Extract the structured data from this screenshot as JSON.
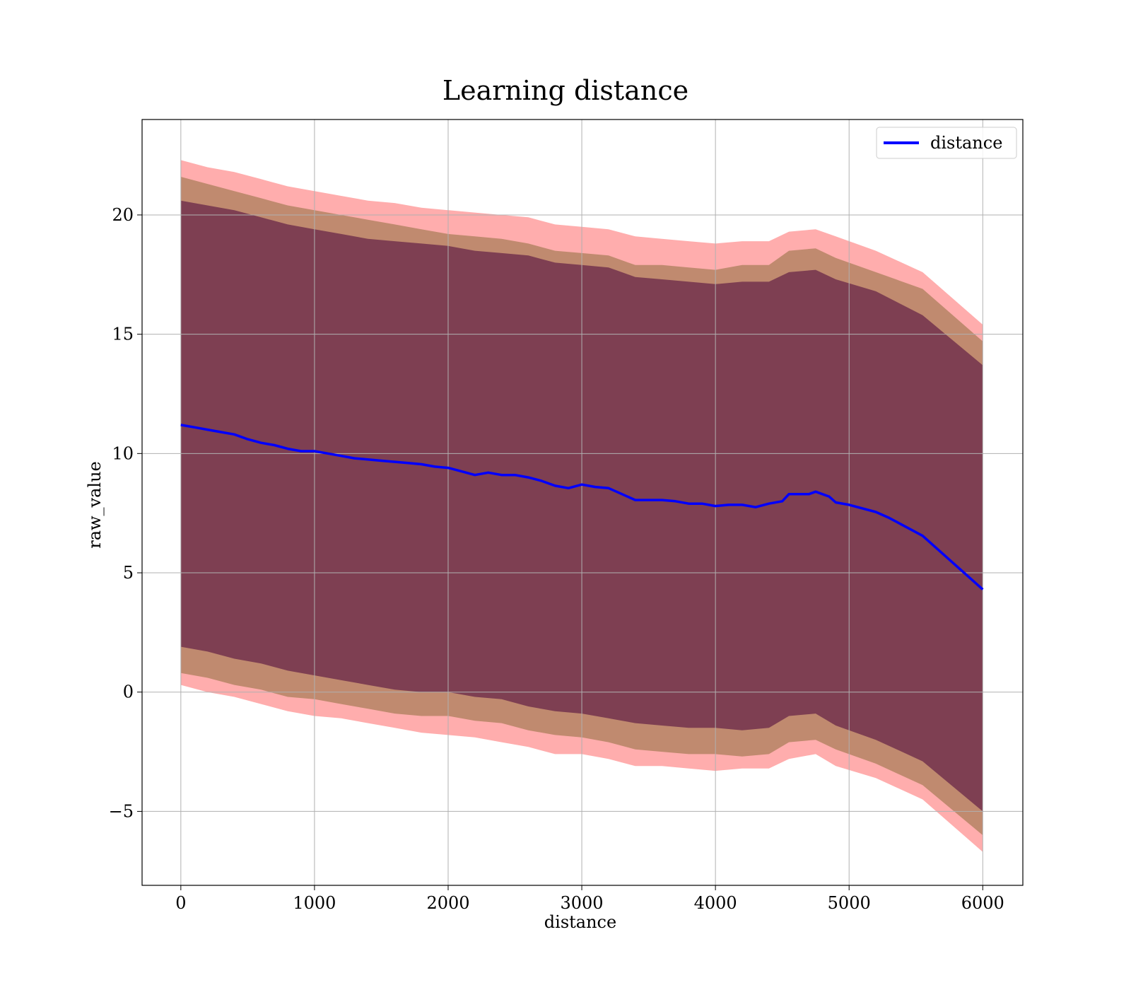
{
  "chart_data": {
    "type": "line",
    "title": "Learning distance",
    "xlabel": "distance",
    "ylabel": "raw_value",
    "xlim": [
      -290,
      6300
    ],
    "ylim": [
      -8.1,
      24.0
    ],
    "xticks": [
      0,
      1000,
      2000,
      3000,
      4000,
      5000,
      6000
    ],
    "xtick_labels": [
      "0",
      "1000",
      "2000",
      "3000",
      "4000",
      "5000",
      "6000"
    ],
    "yticks": [
      -5,
      0,
      5,
      10,
      15,
      20
    ],
    "ytick_labels": [
      "−5",
      "0",
      "5",
      "10",
      "15",
      "20"
    ],
    "grid": true,
    "legend": {
      "position": "upper right",
      "entries": [
        "distance"
      ]
    },
    "colors": {
      "line": "#0000ff",
      "band_outer": "#ff0000",
      "band_middle": "#8c6d3c",
      "band_inner": "#6b2a4a"
    },
    "series": [
      {
        "name": "distance",
        "x": [
          0,
          100,
          200,
          300,
          400,
          500,
          600,
          700,
          800,
          900,
          1000,
          1100,
          1200,
          1300,
          1400,
          1500,
          1600,
          1700,
          1800,
          1900,
          2000,
          2100,
          2200,
          2300,
          2400,
          2500,
          2600,
          2700,
          2800,
          2900,
          3000,
          3100,
          3200,
          3300,
          3400,
          3500,
          3600,
          3700,
          3800,
          3900,
          4000,
          4100,
          4200,
          4300,
          4400,
          4500,
          4550,
          4700,
          4750,
          4850,
          4900,
          5000,
          5200,
          5300,
          5550,
          6000
        ],
        "y": [
          11.2,
          11.1,
          11.0,
          10.9,
          10.8,
          10.6,
          10.45,
          10.35,
          10.2,
          10.1,
          10.1,
          10.0,
          9.9,
          9.8,
          9.75,
          9.7,
          9.65,
          9.6,
          9.55,
          9.45,
          9.4,
          9.25,
          9.1,
          9.2,
          9.1,
          9.1,
          9.0,
          8.85,
          8.65,
          8.55,
          8.7,
          8.6,
          8.55,
          8.3,
          8.05,
          8.05,
          8.05,
          8.0,
          7.9,
          7.9,
          7.8,
          7.85,
          7.85,
          7.75,
          7.9,
          8.0,
          8.3,
          8.3,
          8.4,
          8.2,
          7.95,
          7.85,
          7.55,
          7.3,
          6.55,
          4.3
        ]
      }
    ],
    "bands": [
      {
        "x": [
          0,
          200,
          400,
          600,
          800,
          1000,
          1200,
          1400,
          1600,
          1800,
          2000,
          2200,
          2400,
          2600,
          2800,
          3000,
          3200,
          3400,
          3600,
          3800,
          4000,
          4200,
          4400,
          4550,
          4750,
          4900,
          5200,
          5550,
          6000
        ],
        "upper": [
          22.3,
          22.0,
          21.8,
          21.5,
          21.2,
          21.0,
          20.8,
          20.6,
          20.5,
          20.3,
          20.2,
          20.1,
          20.0,
          19.9,
          19.6,
          19.5,
          19.4,
          19.1,
          19.0,
          18.9,
          18.8,
          18.9,
          18.9,
          19.3,
          19.4,
          19.1,
          18.5,
          17.6,
          15.4
        ],
        "lower": [
          0.3,
          0.0,
          -0.2,
          -0.5,
          -0.8,
          -1.0,
          -1.1,
          -1.3,
          -1.5,
          -1.7,
          -1.8,
          -1.9,
          -2.1,
          -2.3,
          -2.6,
          -2.6,
          -2.8,
          -3.1,
          -3.1,
          -3.2,
          -3.3,
          -3.2,
          -3.2,
          -2.8,
          -2.6,
          -3.1,
          -3.6,
          -4.5,
          -6.7
        ]
      },
      {
        "x": [
          0,
          200,
          400,
          600,
          800,
          1000,
          1200,
          1400,
          1600,
          1800,
          2000,
          2200,
          2400,
          2600,
          2800,
          3000,
          3200,
          3400,
          3600,
          3800,
          4000,
          4200,
          4400,
          4550,
          4750,
          4900,
          5200,
          5550,
          6000
        ],
        "upper": [
          21.6,
          21.3,
          21.0,
          20.7,
          20.4,
          20.2,
          20.0,
          19.8,
          19.6,
          19.4,
          19.2,
          19.1,
          19.0,
          18.8,
          18.5,
          18.4,
          18.3,
          17.9,
          17.9,
          17.8,
          17.7,
          17.9,
          17.9,
          18.5,
          18.6,
          18.2,
          17.6,
          16.9,
          14.7
        ],
        "lower": [
          0.8,
          0.6,
          0.3,
          0.1,
          -0.2,
          -0.3,
          -0.5,
          -0.7,
          -0.9,
          -1.0,
          -1.0,
          -1.2,
          -1.3,
          -1.6,
          -1.8,
          -1.9,
          -2.1,
          -2.4,
          -2.5,
          -2.6,
          -2.6,
          -2.7,
          -2.6,
          -2.1,
          -2.0,
          -2.4,
          -3.0,
          -3.9,
          -6.0
        ]
      },
      {
        "x": [
          0,
          200,
          400,
          600,
          800,
          1000,
          1200,
          1400,
          1600,
          1800,
          2000,
          2200,
          2400,
          2600,
          2800,
          3000,
          3200,
          3400,
          3600,
          3800,
          4000,
          4200,
          4400,
          4550,
          4750,
          4900,
          5200,
          5550,
          6000
        ],
        "upper": [
          20.6,
          20.4,
          20.2,
          19.9,
          19.6,
          19.4,
          19.2,
          19.0,
          18.9,
          18.8,
          18.7,
          18.5,
          18.4,
          18.3,
          18.0,
          17.9,
          17.8,
          17.4,
          17.3,
          17.2,
          17.1,
          17.2,
          17.2,
          17.6,
          17.7,
          17.3,
          16.8,
          15.8,
          13.7
        ],
        "lower": [
          1.9,
          1.7,
          1.4,
          1.2,
          0.9,
          0.7,
          0.5,
          0.3,
          0.1,
          0.0,
          0.0,
          -0.2,
          -0.3,
          -0.6,
          -0.8,
          -0.9,
          -1.1,
          -1.3,
          -1.4,
          -1.5,
          -1.5,
          -1.6,
          -1.5,
          -1.0,
          -0.9,
          -1.4,
          -2.0,
          -2.9,
          -5.0
        ]
      }
    ]
  }
}
